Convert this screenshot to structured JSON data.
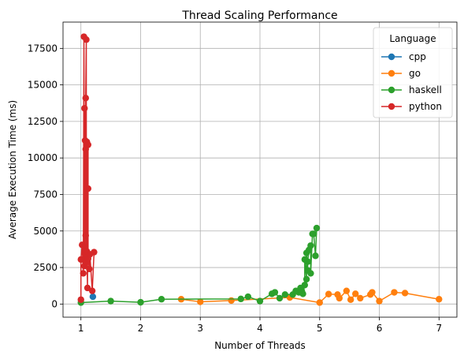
{
  "chart_data": {
    "type": "line",
    "title": "Thread Scaling Performance",
    "xlabel": "Number of Threads",
    "ylabel": "Average Execution Time (ms)",
    "xlim": [
      0.7,
      7.3
    ],
    "ylim": [
      -900,
      19300
    ],
    "xticks": [
      1,
      2,
      3,
      4,
      5,
      6,
      7
    ],
    "yticks": [
      0,
      2500,
      5000,
      7500,
      10000,
      12500,
      15000,
      17500
    ],
    "grid": true,
    "legend": {
      "title": "Language",
      "placement": "top-right"
    },
    "series": [
      {
        "name": "cpp",
        "color": "#1f77b4",
        "points": [
          [
            1.2,
            500
          ]
        ]
      },
      {
        "name": "go",
        "color": "#ff7f0e",
        "points": [
          [
            2.68,
            330
          ],
          [
            3.0,
            150
          ],
          [
            3.52,
            240
          ],
          [
            4.5,
            450
          ],
          [
            5.0,
            100
          ],
          [
            5.15,
            680
          ],
          [
            5.3,
            650
          ],
          [
            5.33,
            400
          ],
          [
            5.45,
            900
          ],
          [
            5.52,
            300
          ],
          [
            5.6,
            700
          ],
          [
            5.68,
            400
          ],
          [
            5.85,
            650
          ],
          [
            5.88,
            800
          ],
          [
            6.0,
            200
          ],
          [
            6.25,
            800
          ],
          [
            6.43,
            750
          ],
          [
            7.0,
            330
          ]
        ]
      },
      {
        "name": "haskell",
        "color": "#2ca02c",
        "points": [
          [
            1.0,
            100
          ],
          [
            1.5,
            200
          ],
          [
            2.0,
            120
          ],
          [
            2.35,
            330
          ],
          [
            3.68,
            350
          ],
          [
            3.8,
            500
          ],
          [
            4.0,
            200
          ],
          [
            4.2,
            700
          ],
          [
            4.25,
            800
          ],
          [
            4.33,
            400
          ],
          [
            4.42,
            650
          ],
          [
            4.55,
            650
          ],
          [
            4.6,
            900
          ],
          [
            4.65,
            800
          ],
          [
            4.68,
            1100
          ],
          [
            4.7,
            900
          ],
          [
            4.72,
            700
          ],
          [
            4.75,
            1300
          ],
          [
            4.75,
            3050
          ],
          [
            4.78,
            1700
          ],
          [
            4.78,
            3500
          ],
          [
            4.8,
            2300
          ],
          [
            4.8,
            2900
          ],
          [
            4.82,
            3700
          ],
          [
            4.85,
            4000
          ],
          [
            4.85,
            2100
          ],
          [
            4.88,
            4800
          ],
          [
            4.9,
            4800
          ],
          [
            4.93,
            3300
          ],
          [
            4.95,
            5200
          ]
        ]
      },
      {
        "name": "python",
        "color": "#d62728",
        "points": [
          [
            1.0,
            300
          ],
          [
            1.0,
            3050
          ],
          [
            1.02,
            4050
          ],
          [
            1.04,
            2100
          ],
          [
            1.05,
            18300
          ],
          [
            1.06,
            2600
          ],
          [
            1.06,
            13400
          ],
          [
            1.07,
            3900
          ],
          [
            1.07,
            11200
          ],
          [
            1.08,
            4700
          ],
          [
            1.08,
            10600
          ],
          [
            1.08,
            14100
          ],
          [
            1.09,
            18100
          ],
          [
            1.09,
            3300
          ],
          [
            1.09,
            2900
          ],
          [
            1.1,
            11100
          ],
          [
            1.1,
            3600
          ],
          [
            1.11,
            1100
          ],
          [
            1.12,
            10900
          ],
          [
            1.12,
            7900
          ],
          [
            1.12,
            3100
          ],
          [
            1.14,
            2400
          ],
          [
            1.15,
            3400
          ],
          [
            1.19,
            900
          ],
          [
            1.22,
            3550
          ]
        ]
      }
    ]
  }
}
